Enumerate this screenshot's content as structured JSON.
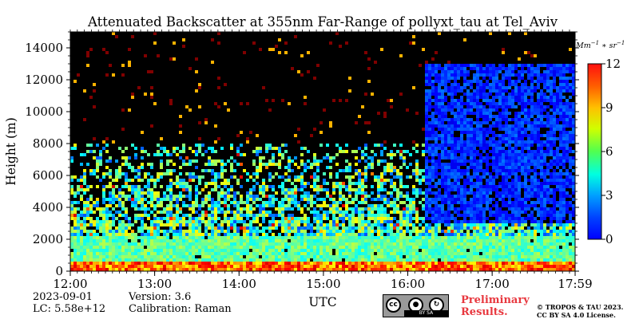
{
  "chart_data": {
    "type": "heatmap",
    "title": "Attenuated Backscatter at 355nm Far-Range of pollyxt_tau at Tel_Aviv",
    "xlabel": "UTC",
    "ylabel": "Height (m)",
    "x_ticks": [
      "12:00",
      "13:00",
      "14:00",
      "15:00",
      "16:00",
      "17:00",
      "17:59"
    ],
    "y_ticks": [
      0,
      2000,
      4000,
      6000,
      8000,
      10000,
      12000,
      14000
    ],
    "xlim_hours": [
      12.0,
      17.983
    ],
    "ylim": [
      0,
      15000
    ],
    "colorbar": {
      "label_base": "Mm",
      "label_exp1": "−1",
      "label_mid": " ∗ sr",
      "label_exp2": "−1",
      "ticks": [
        0,
        3,
        6,
        9,
        12
      ],
      "range": [
        0,
        12
      ],
      "colormap": "jet"
    },
    "profile_description": {
      "surface_layer_top_m": 600,
      "aerosol_layer_top_m": 8000,
      "cloud_onset_hour": 16.2,
      "cloud_band_m": [
        3000,
        13000
      ]
    },
    "background_color": "#000000"
  },
  "meta": {
    "date": "2023-09-01",
    "lc": "LC: 5.58e+12",
    "version": "Version: 3.6",
    "calibration": "Calibration: Raman",
    "preliminary_line1": "Preliminary",
    "preliminary_line2": "Results.",
    "copyright_line1": "© TROPOS & TAU 2023.",
    "copyright_line2": "CC BY SA 4.0 License.",
    "license_band": "BY   SA",
    "license_icons": [
      "cc-icon",
      "by-icon",
      "sa-icon"
    ]
  }
}
